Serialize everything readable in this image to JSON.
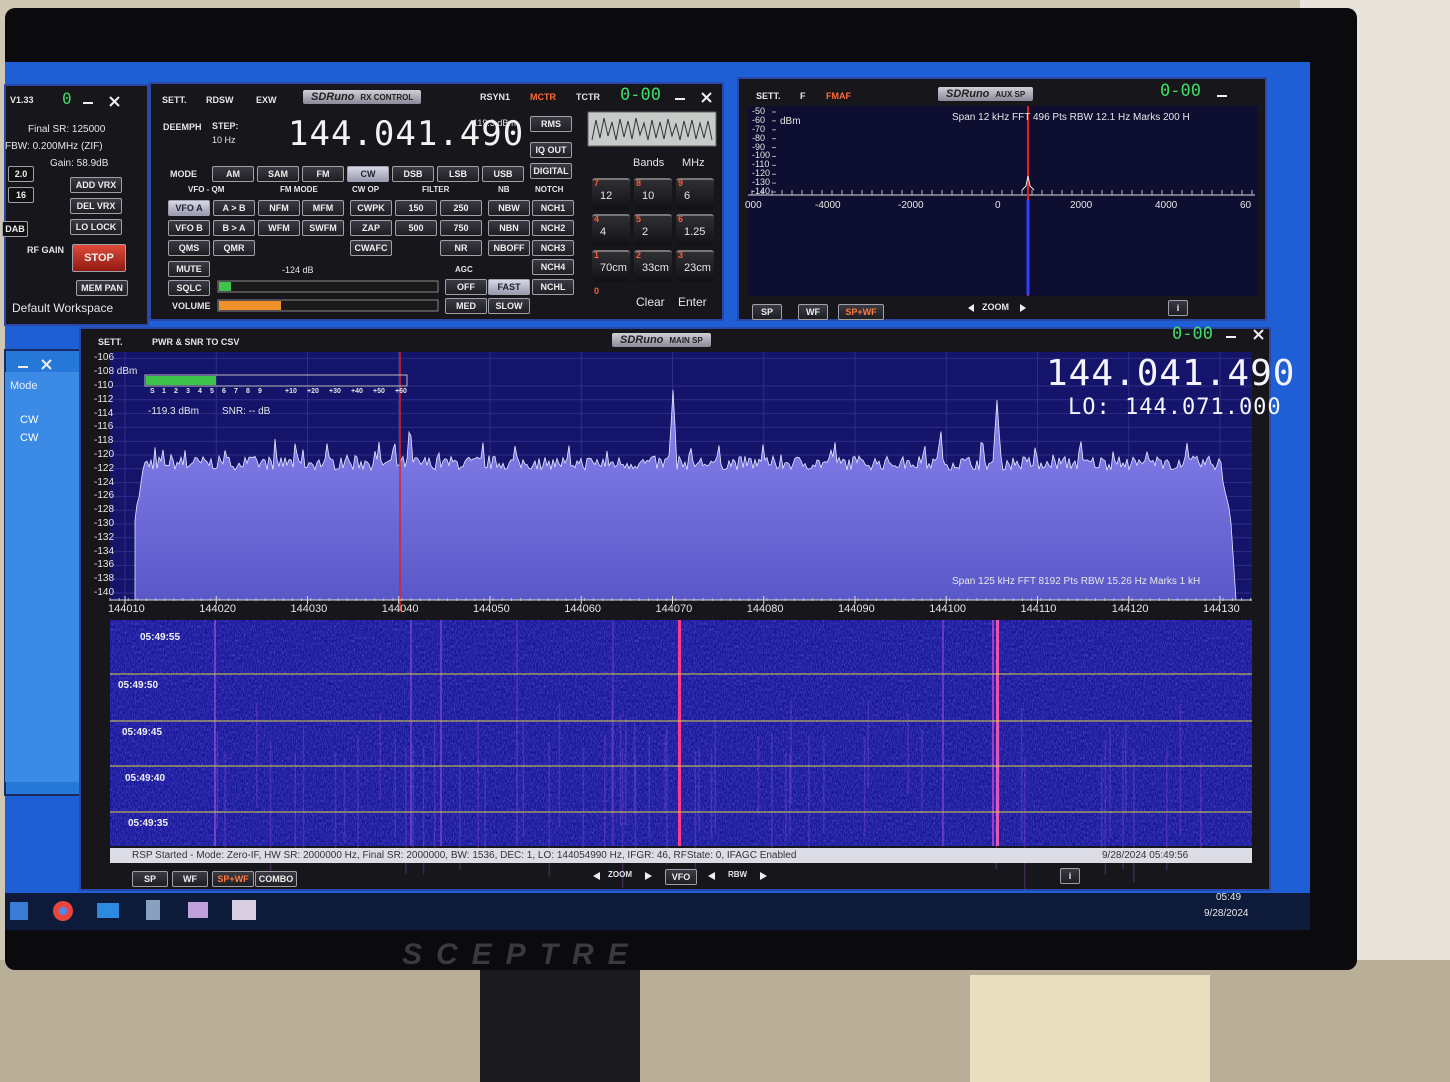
{
  "left_panel": {
    "version": "V1.33",
    "counter": "0",
    "final_sr": "Final SR: 125000",
    "fbw": "FBW: 0.200MHz (ZIF)",
    "gain": "Gain: 58.9dB",
    "fields": [
      "2.0",
      "16",
      "DAB"
    ],
    "buttons": [
      "ADD VRX",
      "DEL VRX",
      "LO LOCK"
    ],
    "rf_gain": "RF GAIN",
    "stop": "STOP",
    "mem_pan": "MEM PAN",
    "workspace": "Default Workspace"
  },
  "rx_control": {
    "tabs": [
      "SETT.",
      "RDSW",
      "EXW"
    ],
    "title": "SDRuno",
    "subtitle": "RX CONTROL",
    "right_tabs": [
      "RSYN1",
      "MCTR",
      "TCTR"
    ],
    "counter": "0-00",
    "deemph": "DEEMPH",
    "step": "STEP:",
    "step_value": "10 Hz",
    "frequency": "144.041.490",
    "level": "-119.3 dBm",
    "side_buttons": [
      "RMS",
      "IQ OUT",
      "DIGITAL"
    ],
    "mode_label": "MODE",
    "modes": [
      "AM",
      "SAM",
      "FM",
      "CW",
      "DSB",
      "LSB",
      "USB"
    ],
    "headers": [
      "VFO - QM",
      "FM MODE",
      "CW OP",
      "FILTER",
      "NB",
      "NOTCH"
    ],
    "rows": [
      [
        "VFO A",
        "A > B",
        "NFM",
        "MFM",
        "CWPK",
        "150",
        "250",
        "NBW",
        "NCH1"
      ],
      [
        "VFO B",
        "B > A",
        "WFM",
        "SWFM",
        "ZAP",
        "500",
        "750",
        "NBN",
        "NCH2"
      ]
    ],
    "row3": [
      "QMS",
      "QMR",
      "CWAFC",
      "NR",
      "NBOFF",
      "NCH3"
    ],
    "mute": "MUTE",
    "sqlc": "SQLC",
    "volume": "VOLUME",
    "squelch_level": "-124 dB",
    "agc": "AGC",
    "agc_buttons": [
      "OFF",
      "FAST",
      "MED",
      "SLOW"
    ],
    "notch_more": [
      "NCH4",
      "NCHL"
    ],
    "bands": "Bands",
    "mhz": "MHz",
    "keys": [
      {
        "num": "7",
        "label": "12"
      },
      {
        "num": "8",
        "label": "10"
      },
      {
        "num": "9",
        "label": "6"
      },
      {
        "num": "4",
        "label": "4"
      },
      {
        "num": "5",
        "label": "2"
      },
      {
        "num": "6",
        "label": "1.25"
      },
      {
        "num": "1",
        "label": "70cm"
      },
      {
        "num": "2",
        "label": "33cm"
      },
      {
        "num": "3",
        "label": "23cm"
      }
    ],
    "zero": "0",
    "clear": "Clear",
    "enter": "Enter"
  },
  "aux_sp": {
    "tabs": [
      "SETT.",
      "F",
      "FMAF"
    ],
    "title": "SDRuno",
    "subtitle": "AUX SP",
    "counter": "0-00",
    "unit": "dBm",
    "yticks": [
      -50,
      -60,
      -70,
      -80,
      -90,
      -100,
      -110,
      -120,
      -130,
      -140
    ],
    "info": "Span 12 kHz  FFT 496 Pts  RBW 12.1 Hz  Marks 200 H",
    "xticks": [
      "000",
      "-4000",
      "-2000",
      "0",
      "2000",
      "4000",
      "60"
    ],
    "buttons": [
      "SP",
      "WF",
      "SP+WF"
    ],
    "zoom": "ZOOM",
    "info_button": "i"
  },
  "main_sp": {
    "tabs": [
      "SETT.",
      "PWR & SNR TO CSV"
    ],
    "title": "SDRuno",
    "subtitle": "MAIN SP",
    "counter": "0-00",
    "frequency": "144.041.490",
    "lo": "LO: 144.071.000",
    "unit": "-108 dBm",
    "yticks": [
      -106,
      -110,
      -112,
      -114,
      -116,
      -118,
      -120,
      -122,
      -124,
      -126,
      -128,
      -130,
      -132,
      -134,
      -136,
      -138,
      -140
    ],
    "smeter": [
      "S",
      "1",
      "2",
      "3",
      "4",
      "5",
      "6",
      "7",
      "8",
      "9",
      "+10",
      "+20",
      "+30",
      "+40",
      "+50",
      "+60"
    ],
    "level": "-119.3 dBm",
    "snr": "SNR: -- dB",
    "info": "Span 125 kHz  FFT 8192 Pts  RBW 15.26 Hz  Marks 1 kH",
    "xticks": [
      144010,
      144020,
      144030,
      144040,
      144050,
      144060,
      144070,
      144080,
      144090,
      144100,
      144110,
      144120,
      144130
    ],
    "times": [
      "05:49:55",
      "05:49:50",
      "05:49:45",
      "05:49:40",
      "05:49:35"
    ],
    "status": "RSP Started - Mode: Zero-IF, HW SR: 2000000 Hz, Final SR: 2000000, BW: 1536, DEC: 1, LO: 144054990 Hz, IFGR: 46, RFState: 0, IFAGC Enabled",
    "timestamp": "9/28/2024 05:49:56",
    "buttons": [
      "SP",
      "WF",
      "SP+WF",
      "COMBO"
    ],
    "zoom": "ZOOM",
    "vfo": "VFO",
    "rbw": "RBW",
    "info_button": "i"
  },
  "memory_window": {
    "header": "Mode",
    "rows": [
      "CW",
      "CW"
    ]
  },
  "taskbar": {
    "time": "05:49",
    "date": "9/28/2024"
  },
  "monitor": {
    "brand": "SCEPTRE"
  }
}
